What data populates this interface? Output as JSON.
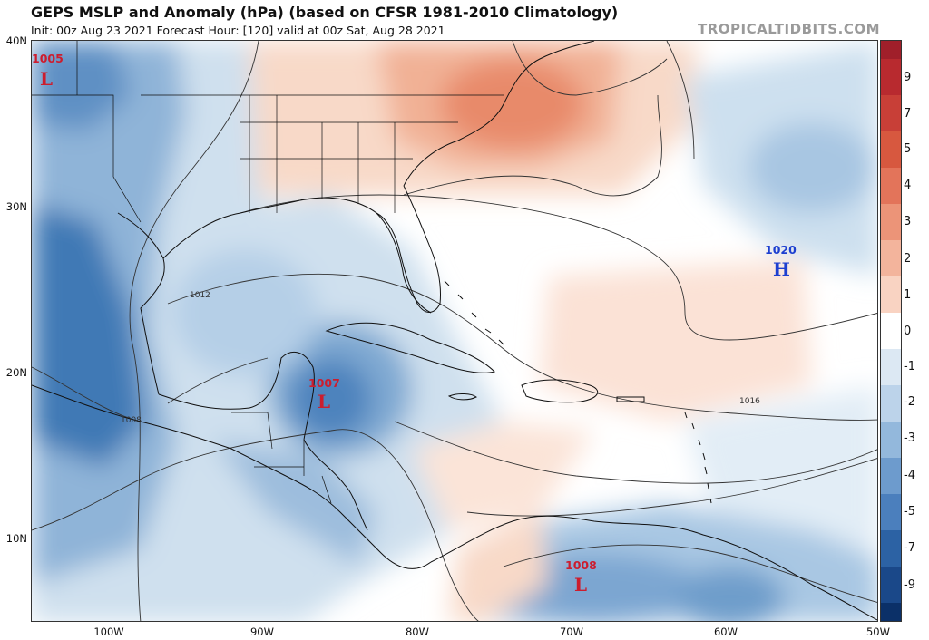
{
  "header": {
    "title": "GEPS MSLP and Anomaly (hPa) (based on CFSR 1981-2010 Climatology)",
    "subtitle": "Init: 00z Aug 23 2021   Forecast Hour: [120]   valid at 00z Sat, Aug 28 2021",
    "watermark": "TROPICALTIDBITS.COM"
  },
  "axes": {
    "lat_labels": [
      "40N",
      "30N",
      "20N",
      "10N"
    ],
    "lon_labels": [
      "100W",
      "90W",
      "80W",
      "70W",
      "60W",
      "50W"
    ]
  },
  "contour_labels": {
    "c1012": "1012",
    "c1016": "1016",
    "c1008": "1008"
  },
  "pressure_systems": [
    {
      "type": "low",
      "symbol": "L",
      "value": "1005",
      "color": "#cc1d2e"
    },
    {
      "type": "low",
      "symbol": "L",
      "value": "1007",
      "color": "#cc1d2e"
    },
    {
      "type": "low",
      "symbol": "L",
      "value": "1008",
      "color": "#cc1d2e"
    },
    {
      "type": "high",
      "symbol": "H",
      "value": "1020",
      "color": "#1d3fd0"
    }
  ],
  "colorbar": {
    "ticks": [
      "9",
      "7",
      "5",
      "4",
      "3",
      "2",
      "1",
      "0",
      "-1",
      "-2",
      "-3",
      "-4",
      "-5",
      "-7",
      "-9"
    ],
    "colors": {
      "pos_strong": "#c0392b",
      "pos_weak": "#f6cbb6",
      "neutral": "#ffffff",
      "neg_weak": "#c8dcec",
      "neg_strong": "#0b3a78"
    }
  }
}
